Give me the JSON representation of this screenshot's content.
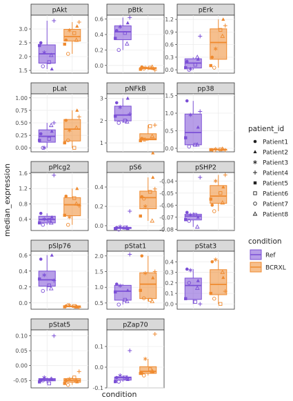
{
  "chart_data": {
    "type": "box",
    "xlabel": "condition",
    "ylabel": "median_expression",
    "conditions": [
      "Ref",
      "BCRXL"
    ],
    "condition_colors": {
      "Ref": "#7b4fd6",
      "BCRXL": "#ef8a2f"
    },
    "patients": [
      "Patient1",
      "Patient2",
      "Patient3",
      "Patient4",
      "Patient5",
      "Patient6",
      "Patient7",
      "Patient8"
    ],
    "patient_shapes": [
      "dot",
      "triangle",
      "asterisk",
      "plus",
      "square-filled",
      "square-open",
      "circle-open",
      "triangle-open"
    ],
    "legend_patient_title": "patient_id",
    "legend_condition_title": "condition",
    "panels": [
      {
        "name": "pAkt",
        "ylim": [
          1.4,
          3.5
        ],
        "yticks": [
          1.5,
          2.0,
          2.5,
          3.0
        ],
        "tick_labels": [
          "1.5",
          "2.0",
          "2.5",
          "3.0"
        ],
        "Ref": [
          2.5,
          1.55,
          2.15,
          3.3,
          2.4,
          1.8,
          1.65,
          2.05
        ],
        "BCRXL": [
          2.6,
          3.1,
          2.95,
          3.25,
          2.45,
          2.85,
          2.1,
          2.6
        ]
      },
      {
        "name": "pBtk",
        "ylim": [
          -0.1,
          0.65
        ],
        "yticks": [
          0.0,
          0.2,
          0.4,
          0.6
        ],
        "tick_labels": [
          "0.0",
          "0.2",
          "0.4",
          "0.6"
        ],
        "Ref": [
          0.45,
          0.55,
          0.5,
          0.62,
          0.35,
          0.42,
          0.2,
          0.28
        ],
        "BCRXL": [
          -0.02,
          -0.04,
          -0.03,
          -0.06,
          -0.05,
          -0.03,
          -0.04,
          -0.02
        ]
      },
      {
        "name": "pErk",
        "ylim": [
          -0.08,
          1.3
        ],
        "yticks": [
          0.0,
          0.3,
          0.6,
          0.9,
          1.2
        ],
        "tick_labels": [
          "0.0",
          "0.3",
          "0.6",
          "0.9",
          "1.2"
        ],
        "Ref": [
          0.2,
          0.25,
          0.02,
          0.8,
          0.05,
          0.12,
          0.0,
          0.3
        ],
        "BCRXL": [
          0.3,
          1.2,
          0.5,
          1.05,
          0.1,
          0.95,
          0.05,
          0.8
        ]
      },
      {
        "name": "pLat",
        "ylim": [
          -0.08,
          1.08
        ],
        "yticks": [
          0.0,
          0.25,
          0.5,
          0.75,
          1.0
        ],
        "tick_labels": [
          "0.00",
          "0.25",
          "0.50",
          "0.75",
          "1.00"
        ],
        "Ref": [
          0.28,
          0.33,
          0.0,
          0.5,
          0.15,
          0.18,
          0.0,
          0.45
        ],
        "BCRXL": [
          0.55,
          0.75,
          0.35,
          0.62,
          0.1,
          0.0,
          0.15,
          0.4
        ]
      },
      {
        "name": "pNFkB",
        "ylim": [
          0.6,
          3.2
        ],
        "yticks": [
          1,
          2,
          3
        ],
        "tick_labels": [
          "1",
          "2",
          "3"
        ],
        "Ref": [
          2.8,
          3.0,
          2.6,
          2.3,
          2.2,
          2.0,
          1.9,
          1.95
        ],
        "BCRXL": [
          1.2,
          0.55,
          1.15,
          1.8,
          1.1,
          1.75,
          1.15,
          1.3
        ]
      },
      {
        "name": "pp38",
        "ylim": [
          -0.1,
          1.55
        ],
        "yticks": [
          0.0,
          0.5,
          1.0,
          1.5
        ],
        "tick_labels": [
          "0.0",
          "0.5",
          "1.0",
          "1.5"
        ],
        "Ref": [
          1.35,
          0.6,
          0.95,
          1.05,
          0.3,
          0.1,
          0.05,
          0.1
        ],
        "BCRXL": [
          -0.04,
          -0.03,
          -0.02,
          -0.05,
          -0.04,
          -0.03,
          -0.06,
          -0.02
        ]
      },
      {
        "name": "pPlcg2",
        "ylim": [
          0.1,
          1.62
        ],
        "yticks": [
          0.4,
          0.8,
          1.2,
          1.6
        ],
        "tick_labels": [
          "0.4",
          "0.8",
          "1.2",
          "1.6"
        ],
        "Ref": [
          0.55,
          0.45,
          0.4,
          1.55,
          0.3,
          0.38,
          0.25,
          0.3
        ],
        "BCRXL": [
          1.0,
          1.2,
          0.45,
          0.75,
          0.5,
          0.95,
          0.25,
          0.8
        ]
      },
      {
        "name": "pS6",
        "ylim": [
          -0.05,
          0.55
        ],
        "yticks": [
          0.0,
          0.2,
          0.4
        ],
        "tick_labels": [
          "0.0",
          "0.2",
          "0.4"
        ],
        "Ref": [
          -0.02,
          -0.03,
          -0.01,
          0.15,
          -0.03,
          -0.02,
          -0.04,
          -0.02
        ],
        "BCRXL": [
          0.3,
          0.5,
          0.2,
          0.38,
          0.1,
          0.35,
          0.28,
          0.05
        ]
      },
      {
        "name": "pSHP2",
        "ylim": [
          -0.081,
          -0.033
        ],
        "yticks": [
          -0.04,
          -0.05,
          -0.06,
          -0.07,
          -0.08
        ],
        "tick_labels": [
          "-0.04",
          "-0.05",
          "-0.06",
          "-0.07",
          "-0.08"
        ],
        "Ref": [
          -0.066,
          -0.07,
          -0.068,
          -0.037,
          -0.072,
          -0.068,
          -0.073,
          -0.078
        ],
        "BCRXL": [
          -0.06,
          -0.045,
          -0.04,
          -0.035,
          -0.055,
          -0.05,
          -0.065,
          -0.058
        ]
      },
      {
        "name": "pSlp76",
        "ylim": [
          -0.08,
          0.65
        ],
        "yticks": [
          0.0,
          0.2,
          0.4,
          0.6
        ],
        "tick_labels": [
          "0.0",
          "0.2",
          "0.4",
          "0.6"
        ],
        "Ref": [
          0.55,
          0.6,
          0.35,
          0.28,
          0.3,
          0.22,
          0.15,
          0.18
        ],
        "BCRXL": [
          -0.04,
          -0.05,
          -0.03,
          -0.06,
          -0.05,
          -0.04,
          -0.03,
          -0.05
        ]
      },
      {
        "name": "pStat1",
        "ylim": [
          0.3,
          2.15
        ],
        "yticks": [
          0.5,
          1.0,
          1.5,
          2.0
        ],
        "tick_labels": [
          "0.5",
          "1.0",
          "1.5",
          "2.0"
        ],
        "Ref": [
          1.1,
          0.9,
          1.05,
          2.05,
          0.85,
          0.6,
          0.45,
          0.55
        ],
        "BCRXL": [
          2.0,
          1.3,
          1.45,
          1.5,
          0.9,
          0.6,
          0.65,
          0.55
        ]
      },
      {
        "name": "pStat3",
        "ylim": [
          -0.05,
          0.5
        ],
        "yticks": [
          0.0,
          0.1,
          0.2,
          0.3,
          0.4
        ],
        "tick_labels": [
          "0.0",
          "0.1",
          "0.2",
          "0.3",
          "0.4"
        ],
        "Ref": [
          0.33,
          0.22,
          0.32,
          0.0,
          0.05,
          0.02,
          0.2,
          0.15
        ],
        "BCRXL": [
          0.4,
          0.25,
          0.42,
          0.12,
          0.1,
          0.0,
          0.05,
          0.3
        ]
      },
      {
        "name": "pStat5",
        "ylim": [
          -0.075,
          0.12
        ],
        "yticks": [
          -0.05,
          0.0,
          0.05,
          0.1
        ],
        "tick_labels": [
          "-0.05",
          "0.00",
          "0.05",
          "0.10"
        ],
        "Ref": [
          -0.05,
          -0.045,
          -0.04,
          0.1,
          -0.055,
          -0.06,
          -0.05,
          -0.045
        ],
        "BCRXL": [
          -0.05,
          -0.055,
          -0.045,
          -0.02,
          -0.06,
          -0.04,
          -0.065,
          -0.05
        ]
      },
      {
        "name": "pZap70",
        "ylim": [
          -0.1,
          0.18
        ],
        "yticks": [
          -0.1,
          0.0,
          0.1
        ],
        "tick_labels": [
          "-0.1",
          "0.0",
          "0.1"
        ],
        "Ref": [
          -0.05,
          -0.06,
          -0.04,
          0.08,
          -0.07,
          -0.05,
          -0.07,
          -0.05
        ],
        "BCRXL": [
          -0.03,
          -0.02,
          0.04,
          0.16,
          -0.03,
          -0.01,
          -0.04,
          -0.02
        ]
      }
    ]
  }
}
